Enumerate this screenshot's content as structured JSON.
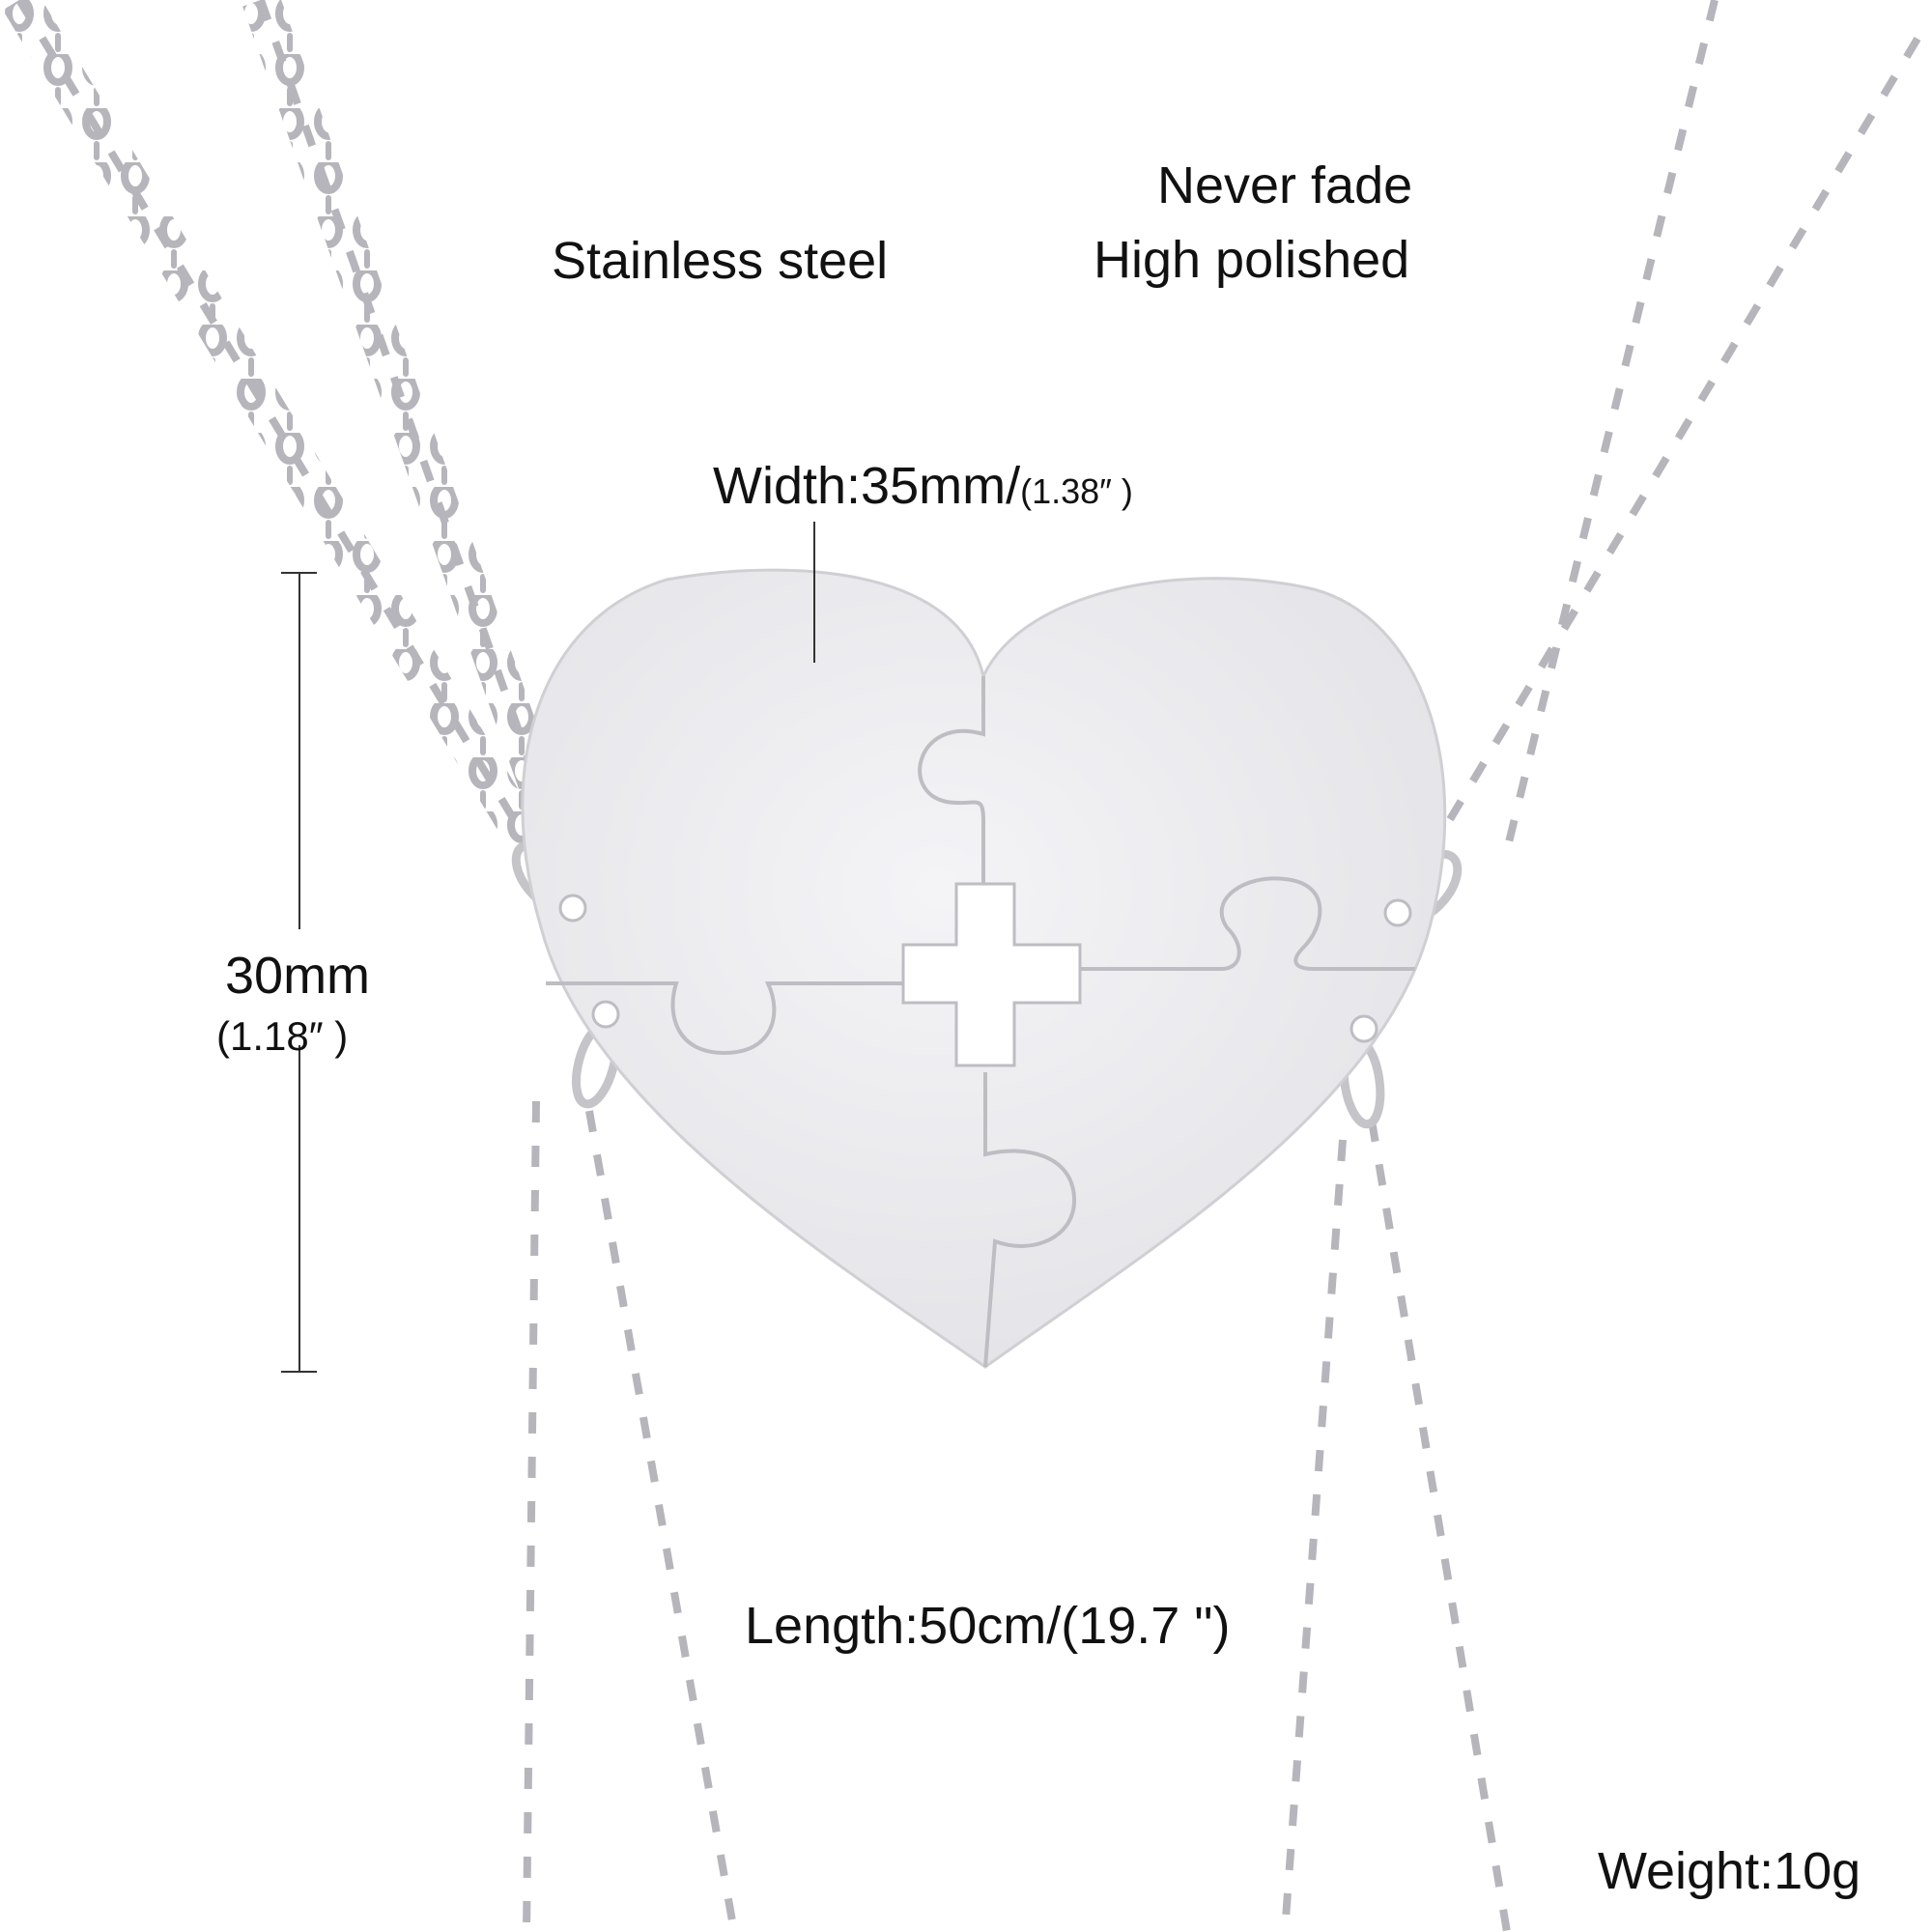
{
  "product": {
    "material": "Stainless steel",
    "features": [
      "Never fade",
      "High polished"
    ],
    "width": {
      "label": "Width:35mm/",
      "inches": "(1.38″ )"
    },
    "height": {
      "metric": "30mm",
      "inches": "(1.18″ )"
    },
    "length": "Length:50cm/(19.7 \")",
    "weight": "Weight:10g"
  },
  "colors": {
    "background": "#ffffff",
    "metal": "#e9e9ec",
    "chain": "#b5b5bb",
    "text": "#111111"
  }
}
